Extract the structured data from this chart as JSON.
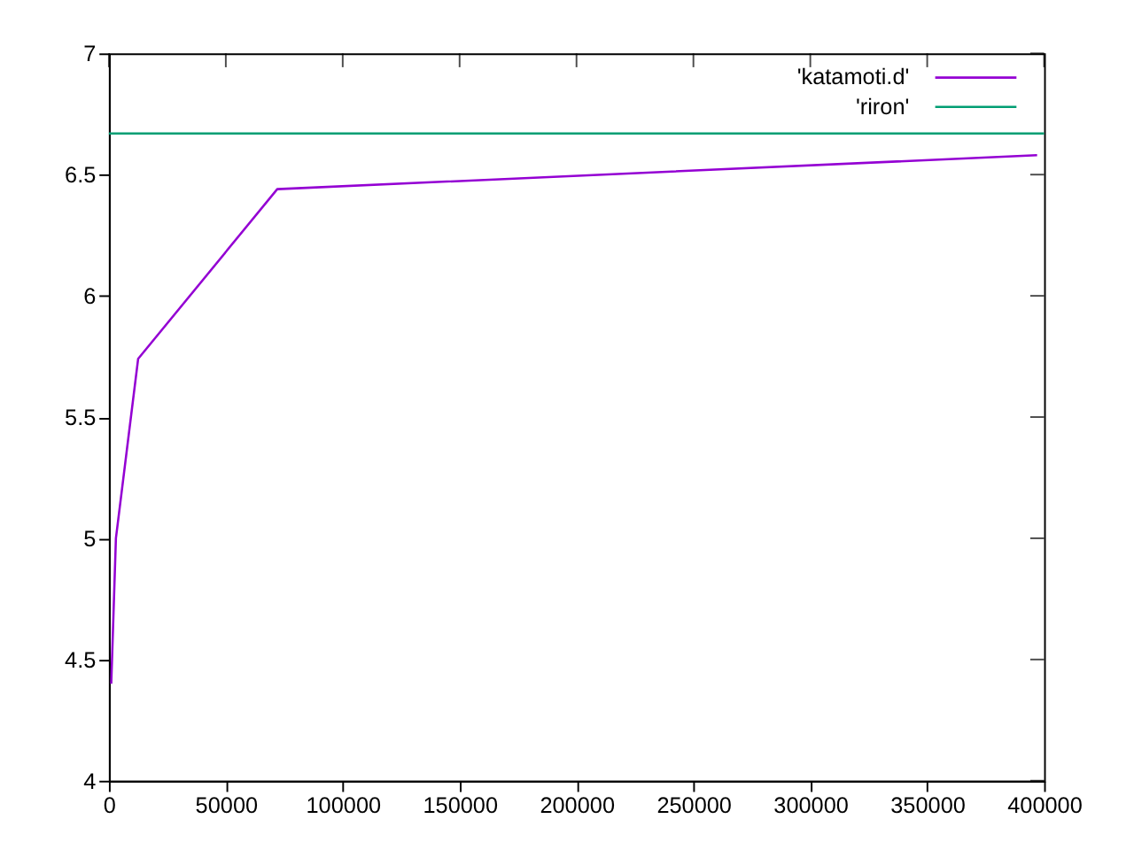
{
  "chart_data": {
    "type": "line",
    "xlim": [
      0,
      400000
    ],
    "xticks": [
      0,
      50000,
      100000,
      150000,
      200000,
      250000,
      300000,
      350000,
      400000
    ],
    "ylim": [
      4,
      7
    ],
    "yticks": [
      4,
      4.5,
      5,
      5.5,
      6,
      6.5,
      7
    ],
    "grid": false,
    "legend": "top right",
    "marker": "none",
    "line_style": "solid",
    "series": [
      {
        "name": "'katamoti.d'",
        "color": "#9400d3",
        "x": [
          1000,
          3000,
          12500,
          72000,
          397000
        ],
        "values": [
          4.4,
          5.0,
          5.74,
          6.44,
          6.58
        ]
      },
      {
        "name": "'riron'",
        "color": "#009e73",
        "x": [
          0,
          400000
        ],
        "values": [
          6.67,
          6.67
        ]
      }
    ]
  }
}
